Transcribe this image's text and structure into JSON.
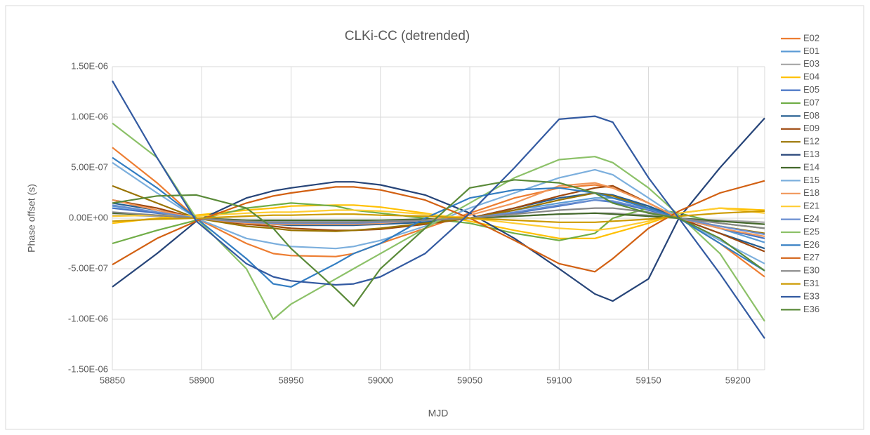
{
  "chart_data": {
    "type": "line",
    "title": "CLKi-CC (detrended)",
    "x_label": "MJD",
    "y_label": "Phase offset (s)",
    "grid": true,
    "legend": "right",
    "x": [
      58850,
      58875,
      58897,
      58925,
      58940,
      58950,
      58975,
      58985,
      59000,
      59025,
      59050,
      59075,
      59100,
      59120,
      59130,
      59150,
      59167,
      59190,
      59215
    ],
    "xlim": [
      58850,
      59215
    ],
    "xticks": [
      58850,
      58900,
      58950,
      59000,
      59050,
      59100,
      59150,
      59200
    ],
    "ylim": [
      -1.5e-06,
      1.5e-06
    ],
    "yticks": [
      {
        "value": -1.5e-06,
        "label": "-1.50E-06"
      },
      {
        "value": -1e-06,
        "label": "-1.00E-06"
      },
      {
        "value": -5e-07,
        "label": "-5.00E-07"
      },
      {
        "value": 0,
        "label": "0.00E+00"
      },
      {
        "value": 5e-07,
        "label": "5.00E-07"
      },
      {
        "value": 1e-06,
        "label": "1.00E-06"
      },
      {
        "value": 1.5e-06,
        "label": "1.50E-06"
      }
    ],
    "series": [
      {
        "name": "E02",
        "color": "#ed7d31",
        "values": [
          7e-07,
          3.5e-07,
          0,
          -2.5e-07,
          -3.5e-07,
          -3.7e-07,
          -3.8e-07,
          -3.5e-07,
          -2.5e-07,
          -1e-07,
          5e-08,
          2e-07,
          3e-07,
          3.3e-07,
          3e-07,
          1.5e-07,
          0,
          -2.5e-07,
          -5.8e-07
        ]
      },
      {
        "name": "E01",
        "color": "#5b9bd5",
        "values": [
          1.2e-07,
          6e-08,
          0,
          -3e-08,
          -5e-08,
          -5e-08,
          -6e-08,
          -6e-08,
          -5e-08,
          -3e-08,
          0,
          8e-08,
          1.5e-07,
          2e-07,
          2e-07,
          1.2e-07,
          0,
          -1e-07,
          -2.4e-07
        ]
      },
      {
        "name": "E03",
        "color": "#a5a5a5",
        "values": [
          3e-08,
          2e-08,
          0,
          -2e-08,
          -3e-08,
          -3e-08,
          -3e-08,
          -3e-08,
          -3e-08,
          -2e-08,
          0,
          2e-08,
          4e-08,
          5e-08,
          5e-08,
          3e-08,
          0,
          -2e-08,
          -4e-08
        ]
      },
      {
        "name": "E04",
        "color": "#ffc000",
        "values": [
          -5e-08,
          0,
          3e-08,
          8e-08,
          1e-07,
          1.2e-07,
          1.3e-07,
          1.3e-07,
          1.1e-07,
          5e-08,
          -3e-08,
          -1.2e-07,
          -2e-07,
          -2e-07,
          -1.5e-07,
          -5e-08,
          5e-08,
          1e-07,
          8e-08
        ]
      },
      {
        "name": "E05",
        "color": "#4472c4",
        "values": [
          1e-07,
          5e-08,
          0,
          -3e-08,
          -4e-08,
          -4e-08,
          -4e-08,
          -4e-08,
          -3e-08,
          -2e-08,
          0,
          5e-08,
          1.2e-07,
          1.8e-07,
          1.6e-07,
          8e-08,
          0,
          -1e-07,
          -2e-07
        ]
      },
      {
        "name": "E07",
        "color": "#70ad47",
        "values": [
          -2.5e-07,
          -1.2e-07,
          -2e-08,
          1e-07,
          1.3e-07,
          1.5e-07,
          1.2e-07,
          8e-08,
          5e-08,
          0,
          -5e-08,
          -1.5e-07,
          -2.2e-07,
          -1.5e-07,
          0,
          1e-07,
          5e-08,
          -5e-08,
          -1e-07
        ]
      },
      {
        "name": "E08",
        "color": "#255e91",
        "values": [
          1.5e-07,
          8e-08,
          0,
          -5e-08,
          -6e-08,
          -7e-08,
          -7e-08,
          -7e-08,
          -6e-08,
          -4e-08,
          0,
          1e-07,
          2e-07,
          2.5e-07,
          2.3e-07,
          1.2e-07,
          0,
          -1.5e-07,
          -3e-07
        ]
      },
      {
        "name": "E09",
        "color": "#9e480e",
        "values": [
          1.8e-07,
          1e-07,
          0,
          -6e-08,
          -8e-08,
          -1e-07,
          -1.2e-07,
          -1.2e-07,
          -1.1e-07,
          -6e-08,
          0,
          1e-07,
          2.2e-07,
          3e-07,
          3.2e-07,
          1.5e-07,
          0,
          -1.5e-07,
          -3.3e-07
        ]
      },
      {
        "name": "E12",
        "color": "#997300",
        "values": [
          3.2e-07,
          1.5e-07,
          0,
          -8e-08,
          -1e-07,
          -1.2e-07,
          -1.3e-07,
          -1.2e-07,
          -1e-07,
          -5e-08,
          0,
          8e-08,
          1.8e-07,
          2.5e-07,
          2.2e-07,
          1e-07,
          0,
          -8e-08,
          -1.5e-07
        ]
      },
      {
        "name": "E13",
        "color": "#264478",
        "values": [
          -6.8e-07,
          -3.5e-07,
          -3e-08,
          2e-07,
          2.7e-07,
          3e-07,
          3.6e-07,
          3.6e-07,
          3.3e-07,
          2.3e-07,
          5e-08,
          -2e-07,
          -5e-07,
          -7.5e-07,
          -8.2e-07,
          -6e-07,
          0,
          5e-07,
          9.9e-07
        ]
      },
      {
        "name": "E14",
        "color": "#43682b",
        "values": [
          5e-08,
          3e-08,
          0,
          -2e-08,
          -2e-08,
          -2e-08,
          -2e-08,
          -2e-08,
          -2e-08,
          -1e-08,
          0,
          2e-08,
          4e-08,
          5e-08,
          4e-08,
          2e-08,
          0,
          -3e-08,
          -6e-08
        ]
      },
      {
        "name": "E15",
        "color": "#7cafdd",
        "values": [
          5.5e-07,
          2.5e-07,
          0,
          -2e-07,
          -2.5e-07,
          -2.8e-07,
          -3e-07,
          -2.8e-07,
          -2.2e-07,
          -8e-08,
          1e-07,
          2.5e-07,
          4e-07,
          4.8e-07,
          4.3e-07,
          2e-07,
          0,
          -2.2e-07,
          -4.5e-07
        ]
      },
      {
        "name": "E18",
        "color": "#f1975a",
        "values": [
          1.8e-07,
          8e-08,
          0,
          -5e-08,
          -6e-08,
          -6e-08,
          -6e-08,
          -6e-08,
          -5e-08,
          -2e-08,
          3e-08,
          1.5e-07,
          3.2e-07,
          3.5e-07,
          3e-07,
          1.5e-07,
          0,
          -1e-07,
          -1.8e-07
        ]
      },
      {
        "name": "E21",
        "color": "#ffcd33",
        "values": [
          2e-08,
          3e-08,
          2e-08,
          5e-08,
          6e-08,
          6e-08,
          8e-08,
          8e-08,
          7e-08,
          4e-08,
          0,
          -5e-08,
          -1e-07,
          -1.2e-07,
          -1e-07,
          -3e-08,
          5e-08,
          1e-07,
          5e-08
        ]
      },
      {
        "name": "E24",
        "color": "#698ed0",
        "values": [
          1.3e-07,
          6e-08,
          0,
          -4e-08,
          -5e-08,
          -5e-08,
          -5e-08,
          -5e-08,
          -4e-08,
          -2e-08,
          0,
          6e-08,
          1.3e-07,
          1.8e-07,
          1.7e-07,
          9e-08,
          0,
          -8e-08,
          -1.6e-07
        ]
      },
      {
        "name": "E25",
        "color": "#8cc168",
        "values": [
          9.4e-07,
          6e-07,
          0,
          -5e-07,
          -1e-06,
          -8.5e-07,
          -6e-07,
          -5e-07,
          -3.5e-07,
          -1e-07,
          1.5e-07,
          4e-07,
          5.8e-07,
          6.1e-07,
          5.5e-07,
          3e-07,
          3e-08,
          -3.5e-07,
          -1.02e-06
        ]
      },
      {
        "name": "E26",
        "color": "#327dc2",
        "values": [
          6e-07,
          3e-07,
          0,
          -4e-07,
          -6.5e-07,
          -6.8e-07,
          -4.5e-07,
          -3.5e-07,
          -2.5e-07,
          0,
          2e-07,
          2.8e-07,
          3e-07,
          2.5e-07,
          2e-07,
          1e-07,
          0,
          -2.5e-07,
          -5.2e-07
        ]
      },
      {
        "name": "E27",
        "color": "#d26012",
        "values": [
          -4.6e-07,
          -2e-07,
          -3e-08,
          1.5e-07,
          2.2e-07,
          2.5e-07,
          3.1e-07,
          3.1e-07,
          2.8e-07,
          1.8e-07,
          0,
          -2.2e-07,
          -4.5e-07,
          -5.3e-07,
          -4e-07,
          -1e-07,
          7e-08,
          2.5e-07,
          3.7e-07
        ]
      },
      {
        "name": "E30",
        "color": "#878787",
        "values": [
          6e-08,
          3e-08,
          0,
          -3e-08,
          -4e-08,
          -4e-08,
          -4e-08,
          -4e-08,
          -3e-08,
          -2e-08,
          0,
          4e-08,
          8e-08,
          1e-07,
          1e-07,
          6e-08,
          0,
          -5e-08,
          -1e-07
        ]
      },
      {
        "name": "E31",
        "color": "#cc9a00",
        "values": [
          -3e-08,
          -1e-08,
          0,
          2e-08,
          3e-08,
          3e-08,
          4e-08,
          4e-08,
          3e-08,
          2e-08,
          0,
          -2e-08,
          -4e-08,
          -4e-08,
          -3e-08,
          -1e-08,
          2e-08,
          5e-08,
          7e-08
        ]
      },
      {
        "name": "E33",
        "color": "#335aa1",
        "values": [
          1.36e-06,
          6e-07,
          -3e-08,
          -4.5e-07,
          -5.8e-07,
          -6.2e-07,
          -6.6e-07,
          -6.5e-07,
          -5.8e-07,
          -3.5e-07,
          5e-08,
          5e-07,
          9.8e-07,
          1.01e-06,
          9.5e-07,
          4e-07,
          0,
          -5.5e-07,
          -1.19e-06
        ]
      },
      {
        "name": "E36",
        "color": "#5a8a39",
        "values": [
          1.5e-07,
          2.2e-07,
          2.3e-07,
          1e-07,
          -1e-07,
          -3e-07,
          -7e-07,
          -8.7e-07,
          -5e-07,
          -1e-07,
          3e-07,
          3.8e-07,
          3.5e-07,
          2.5e-07,
          1.5e-07,
          5e-08,
          0,
          -2e-07,
          -5.2e-07
        ]
      }
    ]
  }
}
